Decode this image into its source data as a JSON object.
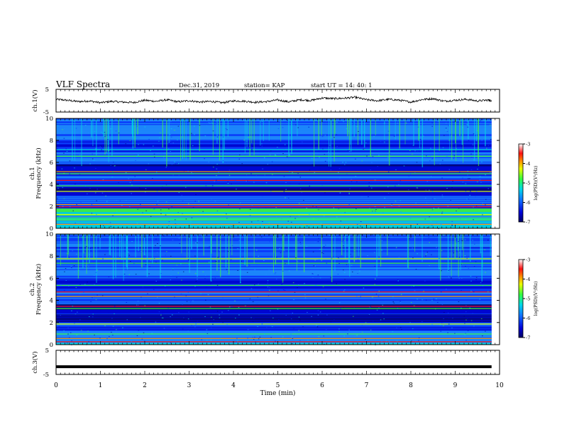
{
  "header": {
    "title": "VLF Spectra",
    "date": "Dec.31, 2019",
    "station": "station= KAP",
    "start": "start  UT =   14: 40: 1"
  },
  "colors": {
    "colormap": [
      "#00006e",
      "#0000d0",
      "#0a3cff",
      "#1e90ff",
      "#00e0e0",
      "#40ff40",
      "#e0ff00",
      "#ffa000",
      "#ff1010",
      "#ffffff"
    ]
  },
  "chart_data": [
    {
      "type": "line",
      "name": "ch1-waveform",
      "ylabel": "ch.1(V)",
      "ylim": [
        -5,
        5
      ],
      "yticks": [
        "5",
        "-5"
      ],
      "xlim": [
        0,
        10
      ],
      "x": [
        0,
        0.25,
        0.5,
        0.75,
        1,
        1.25,
        1.5,
        1.75,
        2,
        2.25,
        2.5,
        2.75,
        3,
        3.25,
        3.5,
        3.75,
        4,
        4.25,
        4.5,
        4.75,
        5,
        5.25,
        5.5,
        5.75,
        6,
        6.25,
        6.5,
        6.75,
        7,
        7.25,
        7.5,
        7.75,
        8,
        8.25,
        8.5,
        8.75,
        9,
        9.25,
        9.5,
        9.75,
        9.82
      ],
      "values": [
        0.6,
        0.2,
        -0.4,
        -0.1,
        -0.9,
        -0.3,
        -0.6,
        -0.8,
        0.2,
        -0.3,
        0.4,
        -0.5,
        0.0,
        -0.6,
        -0.3,
        -0.9,
        -0.1,
        -0.2,
        -0.7,
        -0.4,
        0.3,
        -0.5,
        0.4,
        0.1,
        1.2,
        0.9,
        1.1,
        1.5,
        0.4,
        0.0,
        0.6,
        0.2,
        -0.6,
        0.5,
        0.9,
        -0.2,
        0.2,
        0.6,
        -0.1,
        0.3,
        0.0
      ]
    },
    {
      "type": "heatmap",
      "name": "ch1-spectrogram",
      "ylabel": "ch.1\nFrequency (kHz)",
      "ylim": [
        0,
        10
      ],
      "yticks": [
        "0",
        "2",
        "4",
        "6",
        "8",
        "10"
      ],
      "xlim": [
        0,
        10
      ],
      "colorbar": {
        "label": "log(PSD)(V²/Hz)",
        "range": [
          -7,
          -3
        ],
        "ticks": [
          "-3",
          "-4",
          "-5",
          "-6",
          "-7"
        ]
      }
    },
    {
      "type": "heatmap",
      "name": "ch2-spectrogram",
      "ylabel": "ch.2\nFrequency (kHz)",
      "ylim": [
        0,
        10
      ],
      "yticks": [
        "0",
        "2",
        "4",
        "6",
        "8",
        "10"
      ],
      "xlim": [
        0,
        10
      ],
      "colorbar": {
        "label": "log(PSD)(V²/Hz)",
        "range": [
          -7,
          -3
        ],
        "ticks": [
          "-3",
          "-4",
          "-5",
          "-6",
          "-7"
        ]
      }
    },
    {
      "type": "line",
      "name": "ch3-waveform",
      "ylabel": "ch.3(V)",
      "ylim": [
        -5,
        5
      ],
      "yticks": [
        "5",
        "-5"
      ],
      "xlim": [
        0,
        10
      ],
      "x": [
        0,
        9.82
      ],
      "values": [
        -1.8,
        -1.8
      ]
    }
  ],
  "xaxis": {
    "label": "Time (min)",
    "ticks": [
      "0",
      "1",
      "2",
      "3",
      "4",
      "5",
      "6",
      "7",
      "8",
      "9",
      "10"
    ]
  }
}
